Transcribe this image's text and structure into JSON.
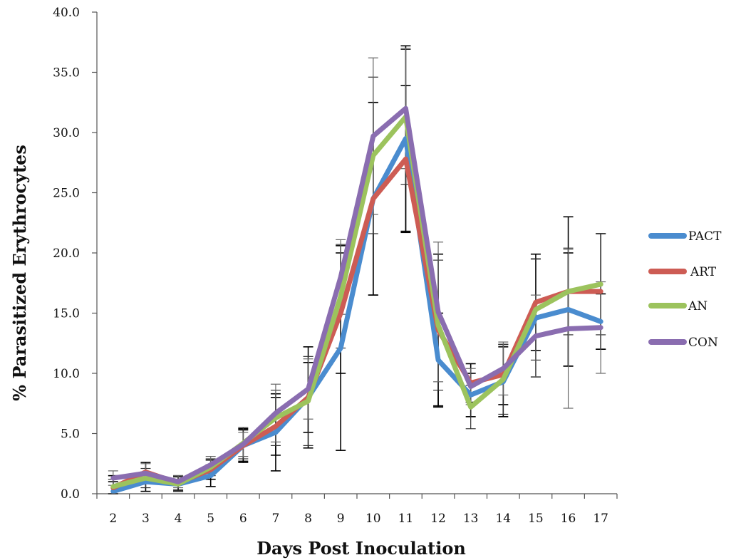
{
  "chart_data": {
    "type": "line",
    "xlabel": "Days Post Inoculation",
    "ylabel": "% Parasitized Erythrocytes",
    "x": [
      2,
      3,
      4,
      5,
      6,
      7,
      8,
      9,
      10,
      11,
      12,
      13,
      14,
      15,
      16,
      17
    ],
    "ylim": [
      0,
      40
    ],
    "yticks": [
      "0.0",
      "5.0",
      "10.0",
      "15.0",
      "20.0",
      "25.0",
      "30.0",
      "35.0",
      "40.0"
    ],
    "grid": false,
    "legend": "right",
    "series": [
      {
        "name": "PACT",
        "color": "#4a8ccf",
        "values": [
          0.2,
          1.0,
          0.8,
          1.5,
          4.0,
          5.1,
          8.0,
          12.1,
          24.5,
          29.5,
          11.1,
          8.2,
          9.3,
          14.6,
          15.3,
          14.3
        ],
        "errors": [
          0.8,
          0.8,
          0.6,
          0.9,
          1.3,
          3.2,
          4.2,
          8.5,
          8.0,
          7.7,
          3.9,
          1.8,
          2.9,
          4.9,
          4.7,
          2.3
        ]
      },
      {
        "name": "ART",
        "color": "#cd5c54",
        "values": [
          0.5,
          1.8,
          0.9,
          2.0,
          4.0,
          5.6,
          8.0,
          15.0,
          24.5,
          27.8,
          13.6,
          9.2,
          9.9,
          15.9,
          16.8,
          16.8
        ],
        "errors": [
          1.0,
          0.8,
          0.6,
          0.8,
          1.4,
          2.4,
          2.9,
          5.0,
          8.0,
          6.1,
          6.3,
          1.6,
          2.5,
          4.0,
          6.2,
          4.8
        ]
      },
      {
        "name": "AN",
        "color": "#9cc35d",
        "values": [
          0.6,
          1.3,
          0.8,
          2.2,
          4.2,
          6.3,
          7.7,
          16.4,
          28.1,
          31.3,
          14.0,
          7.2,
          9.5,
          15.3,
          16.8,
          17.4
        ],
        "errors": [
          0.6,
          0.8,
          0.6,
          0.7,
          1.3,
          2.3,
          3.7,
          4.3,
          6.5,
          5.6,
          5.4,
          1.8,
          2.9,
          4.2,
          3.6,
          4.2
        ]
      },
      {
        "name": "CON",
        "color": "#8a6db0",
        "values": [
          1.3,
          1.7,
          1.0,
          2.4,
          4.1,
          6.7,
          8.7,
          18.0,
          29.7,
          32.0,
          15.1,
          8.9,
          10.4,
          13.1,
          13.7,
          13.8
        ],
        "errors": [
          0.6,
          0.8,
          0.5,
          0.7,
          1.0,
          2.4,
          2.5,
          3.1,
          6.5,
          5.0,
          5.8,
          1.5,
          2.2,
          3.4,
          6.6,
          3.8
        ]
      }
    ]
  }
}
